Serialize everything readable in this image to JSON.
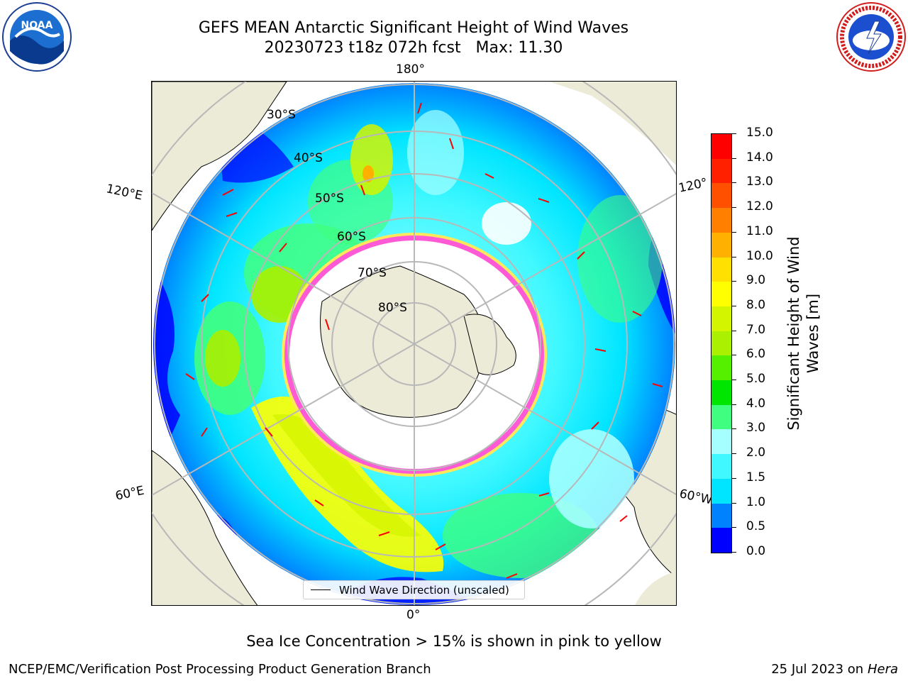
{
  "title": {
    "line1": "GEFS MEAN Antarctic Significant Height of Wind Waves",
    "line2": "20230723 t18z 072h fcst   Max: 11.30"
  },
  "logos": {
    "left": "NOAA",
    "right": "NATIONAL WEATHER SERVICE"
  },
  "map": {
    "lon_labels": {
      "top": "180°",
      "bottom": "0°",
      "left_upper": "120°E",
      "left_lower": "60°E",
      "right_upper": "120°",
      "right_lower": "60°W"
    },
    "lat_labels": [
      "30°S",
      "40°S",
      "50°S",
      "60°S",
      "70°S",
      "80°S"
    ],
    "legend": "Wind Wave Direction (unscaled)",
    "colors": {
      "land": "#ecebd8",
      "sea_ice_pink": "#ff5ad6",
      "sea_ice_yellow": "#ffe95a",
      "arrows": "#ff0000",
      "grid": "#b8b8b8"
    }
  },
  "colorbar": {
    "title": "Significant Height of Wind Waves [m]",
    "ticks": [
      "0.0",
      "0.5",
      "1.0",
      "1.5",
      "2.0",
      "3.0",
      "4.0",
      "5.0",
      "6.0",
      "7.0",
      "8.0",
      "9.0",
      "10.0",
      "11.0",
      "12.0",
      "13.0",
      "14.0",
      "15.0"
    ],
    "colors": [
      "#0000ff",
      "#0082ff",
      "#00e5ff",
      "#40f8ff",
      "#a6ffff",
      "#40ff80",
      "#00e600",
      "#55f000",
      "#aaf000",
      "#d4f500",
      "#ffff00",
      "#ffe000",
      "#ffb000",
      "#ff8000",
      "#ff5000",
      "#ff2000",
      "#ff0000"
    ]
  },
  "footer": {
    "note": "Sea Ice Concentration > 15% is shown in pink to yellow",
    "credit": "NCEP/EMC/Verification Post Processing Product Generation Branch",
    "date": "25 Jul 2023 on",
    "machine": "Hera"
  }
}
